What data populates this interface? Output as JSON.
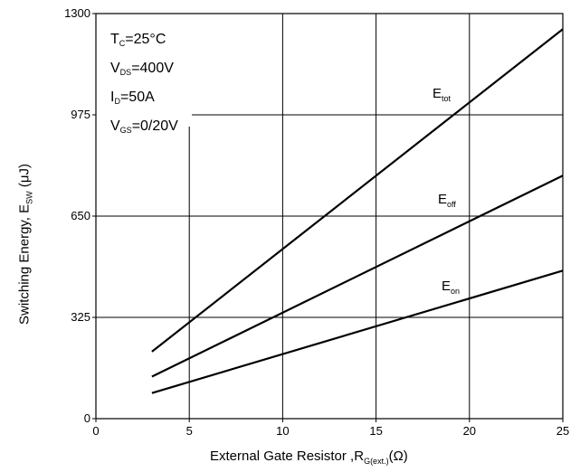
{
  "chart_data": {
    "type": "line",
    "x_axis": {
      "label_main": "External Gate Resistor ,R",
      "label_sub": "G(ext.)",
      "label_unit": "(Ω)",
      "range": [
        0,
        25
      ],
      "ticks": [
        0,
        5,
        10,
        15,
        20,
        25
      ]
    },
    "y_axis": {
      "label_main": "Switching Energy, E",
      "label_sub": "SW",
      "label_unit": " (μJ)",
      "range": [
        0,
        1300
      ],
      "ticks": [
        0,
        325,
        650,
        975,
        1300
      ]
    },
    "grid": true,
    "conditions": [
      {
        "main": "T",
        "sub": "C",
        "rest": "=25°C"
      },
      {
        "main": "V",
        "sub": "DS",
        "rest": "=400V"
      },
      {
        "main": "I",
        "sub": "D",
        "rest": "=50A"
      },
      {
        "main": "V",
        "sub": "GS",
        "rest": "=0/20V"
      }
    ],
    "series": [
      {
        "name": "E_tot",
        "label_main": "E",
        "label_sub": "tot",
        "x": [
          3,
          25
        ],
        "y": [
          215,
          1250
        ]
      },
      {
        "name": "E_off",
        "label_main": "E",
        "label_sub": "off",
        "x": [
          3,
          25
        ],
        "y": [
          135,
          780
        ]
      },
      {
        "name": "E_on",
        "label_main": "E",
        "label_sub": "on",
        "x": [
          3,
          25
        ],
        "y": [
          82,
          475
        ]
      }
    ]
  }
}
